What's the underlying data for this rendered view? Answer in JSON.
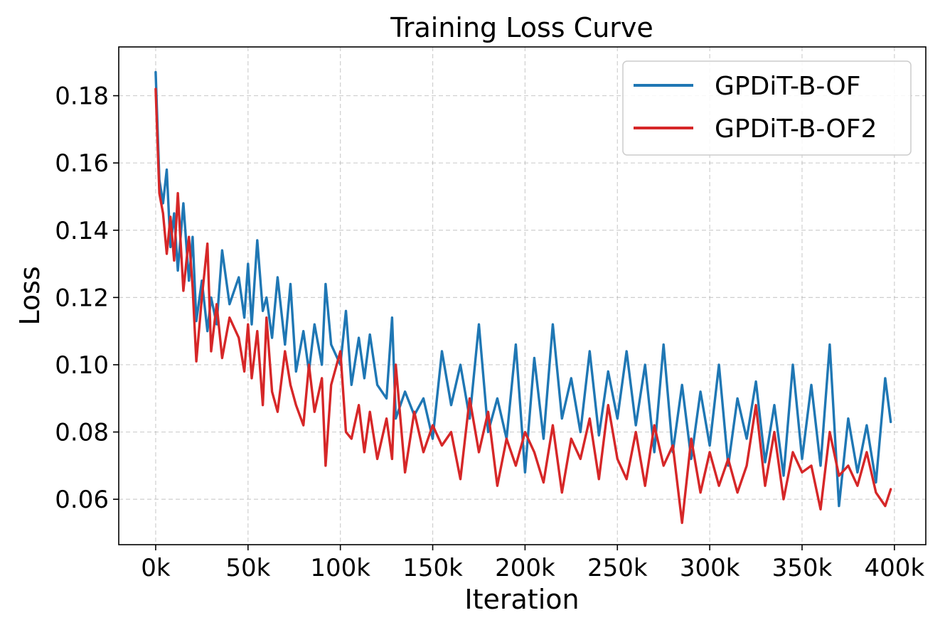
{
  "chart_data": {
    "type": "line",
    "title": "Training Loss Curve",
    "xlabel": "Iteration",
    "ylabel": "Loss",
    "xlim": [
      -20000,
      417000
    ],
    "ylim": [
      0.0465,
      0.1945
    ],
    "xticks": [
      0,
      50000,
      100000,
      150000,
      200000,
      250000,
      300000,
      350000,
      400000
    ],
    "xtick_labels": [
      "0k",
      "50k",
      "100k",
      "150k",
      "200k",
      "250k",
      "300k",
      "350k",
      "400k"
    ],
    "yticks": [
      0.06,
      0.08,
      0.1,
      0.12,
      0.14,
      0.16,
      0.18
    ],
    "ytick_labels": [
      "0.06",
      "0.08",
      "0.10",
      "0.12",
      "0.14",
      "0.16",
      "0.18"
    ],
    "grid": true,
    "legend_position": "top-right",
    "series": [
      {
        "name": "GPDiT-B-OF",
        "color": "#1f77b4",
        "x": [
          0,
          2000,
          4000,
          6000,
          8000,
          10000,
          12000,
          15000,
          18000,
          20000,
          22000,
          25000,
          28000,
          30000,
          33000,
          36000,
          40000,
          45000,
          48000,
          50000,
          52000,
          55000,
          58000,
          60000,
          63000,
          66000,
          70000,
          73000,
          76000,
          80000,
          83000,
          86000,
          90000,
          92000,
          95000,
          100000,
          103000,
          106000,
          110000,
          113000,
          116000,
          120000,
          125000,
          128000,
          130000,
          135000,
          140000,
          145000,
          150000,
          155000,
          160000,
          165000,
          170000,
          175000,
          180000,
          185000,
          190000,
          195000,
          200000,
          205000,
          210000,
          215000,
          220000,
          225000,
          230000,
          235000,
          240000,
          245000,
          250000,
          255000,
          260000,
          265000,
          270000,
          275000,
          280000,
          285000,
          290000,
          295000,
          300000,
          305000,
          310000,
          315000,
          320000,
          325000,
          330000,
          335000,
          340000,
          345000,
          350000,
          355000,
          360000,
          365000,
          370000,
          375000,
          380000,
          385000,
          390000,
          395000,
          398000
        ],
        "y": [
          0.187,
          0.155,
          0.148,
          0.158,
          0.135,
          0.145,
          0.128,
          0.148,
          0.125,
          0.138,
          0.113,
          0.125,
          0.11,
          0.12,
          0.112,
          0.134,
          0.118,
          0.126,
          0.114,
          0.13,
          0.112,
          0.137,
          0.116,
          0.12,
          0.108,
          0.126,
          0.106,
          0.124,
          0.098,
          0.11,
          0.098,
          0.112,
          0.1,
          0.124,
          0.106,
          0.1,
          0.116,
          0.094,
          0.108,
          0.096,
          0.109,
          0.094,
          0.09,
          0.114,
          0.084,
          0.092,
          0.085,
          0.09,
          0.078,
          0.104,
          0.088,
          0.1,
          0.084,
          0.112,
          0.08,
          0.09,
          0.078,
          0.106,
          0.068,
          0.102,
          0.078,
          0.112,
          0.084,
          0.096,
          0.08,
          0.104,
          0.079,
          0.098,
          0.084,
          0.104,
          0.082,
          0.1,
          0.074,
          0.106,
          0.074,
          0.094,
          0.072,
          0.092,
          0.076,
          0.1,
          0.07,
          0.09,
          0.078,
          0.095,
          0.071,
          0.088,
          0.067,
          0.1,
          0.072,
          0.094,
          0.07,
          0.106,
          0.058,
          0.084,
          0.068,
          0.082,
          0.065,
          0.096,
          0.083
        ]
      },
      {
        "name": "GPDiT-B-OF2",
        "color": "#d62728",
        "x": [
          0,
          2000,
          4000,
          6000,
          8000,
          10000,
          12000,
          15000,
          18000,
          20000,
          22000,
          25000,
          28000,
          30000,
          33000,
          36000,
          40000,
          45000,
          48000,
          50000,
          52000,
          55000,
          58000,
          60000,
          63000,
          66000,
          70000,
          73000,
          76000,
          80000,
          83000,
          86000,
          90000,
          92000,
          95000,
          100000,
          103000,
          106000,
          110000,
          113000,
          116000,
          120000,
          125000,
          128000,
          130000,
          135000,
          140000,
          145000,
          150000,
          155000,
          160000,
          165000,
          170000,
          175000,
          180000,
          185000,
          190000,
          195000,
          200000,
          205000,
          210000,
          215000,
          220000,
          225000,
          230000,
          235000,
          240000,
          245000,
          250000,
          255000,
          260000,
          265000,
          270000,
          275000,
          280000,
          285000,
          290000,
          295000,
          300000,
          305000,
          310000,
          315000,
          320000,
          325000,
          330000,
          335000,
          340000,
          345000,
          350000,
          355000,
          360000,
          365000,
          370000,
          375000,
          380000,
          385000,
          390000,
          395000,
          398000
        ],
        "y": [
          0.182,
          0.151,
          0.145,
          0.133,
          0.144,
          0.131,
          0.151,
          0.122,
          0.138,
          0.123,
          0.101,
          0.12,
          0.136,
          0.104,
          0.118,
          0.102,
          0.114,
          0.108,
          0.098,
          0.112,
          0.096,
          0.11,
          0.088,
          0.114,
          0.092,
          0.086,
          0.104,
          0.094,
          0.088,
          0.082,
          0.1,
          0.086,
          0.096,
          0.07,
          0.094,
          0.104,
          0.08,
          0.078,
          0.088,
          0.074,
          0.086,
          0.072,
          0.084,
          0.072,
          0.1,
          0.068,
          0.086,
          0.074,
          0.082,
          0.076,
          0.08,
          0.066,
          0.09,
          0.074,
          0.086,
          0.064,
          0.078,
          0.07,
          0.08,
          0.074,
          0.065,
          0.082,
          0.062,
          0.078,
          0.072,
          0.084,
          0.066,
          0.088,
          0.072,
          0.066,
          0.08,
          0.064,
          0.082,
          0.07,
          0.076,
          0.053,
          0.078,
          0.062,
          0.074,
          0.064,
          0.072,
          0.062,
          0.07,
          0.088,
          0.064,
          0.08,
          0.06,
          0.074,
          0.068,
          0.07,
          0.057,
          0.08,
          0.067,
          0.07,
          0.064,
          0.074,
          0.062,
          0.058,
          0.063
        ]
      }
    ]
  }
}
